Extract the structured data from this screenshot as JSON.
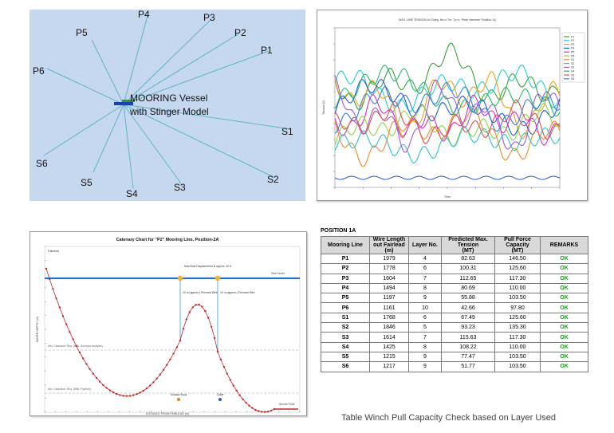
{
  "mooring_layout": {
    "vessel_label_1": "MOORING Vessel",
    "vessel_label_2": "with Stinger Model",
    "anchors": [
      "P1",
      "P2",
      "P3",
      "P4",
      "P5",
      "P6",
      "S1",
      "S2",
      "S3",
      "S4",
      "S5",
      "S6"
    ]
  },
  "time_series": {
    "title": "MAX. LINE TENSION in 10deg, Hs=x.Tm, Tp=x, 'Peak Hammer' Position 1A",
    "ylabel": "Tension (t)",
    "xlabel": "Time",
    "legend": [
      "P1",
      "P2",
      "P3",
      "P4",
      "P5",
      "P6",
      "S1",
      "S2",
      "S3",
      "S4",
      "S5",
      "S6"
    ],
    "colors": [
      "#3aa33a",
      "#21d0d0",
      "#e6a21a",
      "#1f5fd6",
      "#d32cd3",
      "#8ed64a",
      "#f08a2a",
      "#2ec4c4",
      "#a65ad6",
      "#26b86c",
      "#e04f4f",
      "#3b7fe0"
    ]
  },
  "catenary": {
    "title": "Catenary Chart for \"P2\" Mooring Line, Position-2A",
    "fairlead": "Fairlead",
    "sea_level": "Sea Level",
    "max_boat_disp": "Max Boat Displacement is approx. 40 ft",
    "pennant_1": "10 m (approx.) Pennant Wire",
    "pennant_2": "10 m (approx.) Pennant Wire",
    "clearance_1": "Min. Clearance Req. (MBL Surveyor Analysis)",
    "clearance_2": "Min. Clearance Req. (MBL Pipeline)",
    "ylabel": "WATER DEPTH (m)",
    "xlabel": "DISTANCE FROM FAIRLEAD (m)",
    "buoy_label": "Buoy",
    "cable_label": "Cable",
    "anchor_label": "Anchor Point",
    "surface_buoy": "Surface Buoy"
  },
  "winch_table": {
    "title": "POSITION 1A",
    "headers": [
      "Mooring Line",
      "Wire Length out Fairlead",
      "Layer No.",
      "Predicted Max. Tension",
      "Pull Force Capacity",
      "REMARKS"
    ],
    "units": [
      "",
      "(m)",
      "",
      "(MT)",
      "(MT)",
      ""
    ],
    "rows": [
      [
        "P1",
        "1979",
        "4",
        "82.63",
        "146.50",
        "OK"
      ],
      [
        "P2",
        "1778",
        "6",
        "100.31",
        "125.60",
        "OK"
      ],
      [
        "P3",
        "1604",
        "7",
        "112.65",
        "117.30",
        "OK"
      ],
      [
        "P4",
        "1494",
        "8",
        "80.69",
        "110.00",
        "OK"
      ],
      [
        "P5",
        "1197",
        "9",
        "55.88",
        "103.50",
        "OK"
      ],
      [
        "P6",
        "1161",
        "10",
        "42.66",
        "97.80",
        "OK"
      ],
      [
        "S1",
        "1768",
        "6",
        "67.49",
        "125.60",
        "OK"
      ],
      [
        "S2",
        "1846",
        "5",
        "93.23",
        "135.30",
        "OK"
      ],
      [
        "S3",
        "1614",
        "7",
        "115.63",
        "117.30",
        "OK"
      ],
      [
        "S4",
        "1425",
        "8",
        "108.22",
        "110.00",
        "OK"
      ],
      [
        "S5",
        "1215",
        "9",
        "77.47",
        "103.50",
        "OK"
      ],
      [
        "S6",
        "1217",
        "9",
        "51.77",
        "103.50",
        "OK"
      ]
    ],
    "caption": "Table Winch Pull Capacity Check based on Layer Used"
  }
}
